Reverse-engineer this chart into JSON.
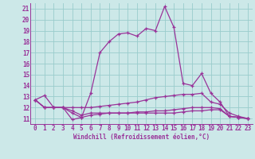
{
  "xlabel": "Windchill (Refroidissement éolien,°C)",
  "xlim": [
    -0.5,
    23.5
  ],
  "ylim": [
    10.5,
    21.5
  ],
  "yticks": [
    11,
    12,
    13,
    14,
    15,
    16,
    17,
    18,
    19,
    20,
    21
  ],
  "xticks": [
    0,
    1,
    2,
    3,
    4,
    5,
    6,
    7,
    8,
    9,
    10,
    11,
    12,
    13,
    14,
    15,
    16,
    17,
    18,
    19,
    20,
    21,
    22,
    23
  ],
  "bg_color": "#cce8e8",
  "line_color": "#993399",
  "grid_color": "#99cccc",
  "line1_x": [
    0,
    1,
    2,
    3,
    4,
    5,
    6,
    7,
    8,
    9,
    10,
    11,
    12,
    13,
    14,
    15,
    16,
    17,
    18,
    19,
    20,
    21,
    22,
    23
  ],
  "line1_y": [
    12.7,
    13.1,
    12.0,
    12.0,
    11.5,
    11.1,
    13.3,
    17.0,
    18.0,
    18.7,
    18.8,
    18.5,
    19.2,
    19.0,
    21.2,
    19.3,
    14.2,
    14.0,
    15.1,
    13.3,
    12.5,
    11.2,
    11.1,
    11.0
  ],
  "line2_x": [
    0,
    1,
    2,
    3,
    4,
    5,
    6,
    7,
    8,
    9,
    10,
    11,
    12,
    13,
    14,
    15,
    16,
    17,
    18,
    19,
    20,
    21,
    22,
    23
  ],
  "line2_y": [
    12.7,
    12.0,
    12.0,
    12.0,
    12.0,
    12.0,
    12.0,
    12.1,
    12.2,
    12.3,
    12.4,
    12.5,
    12.7,
    12.9,
    13.0,
    13.1,
    13.2,
    13.2,
    13.3,
    12.5,
    12.3,
    11.5,
    11.2,
    11.0
  ],
  "line3_x": [
    0,
    1,
    2,
    3,
    4,
    5,
    6,
    7,
    8,
    9,
    10,
    11,
    12,
    13,
    14,
    15,
    16,
    17,
    18,
    19,
    20,
    21,
    22,
    23
  ],
  "line3_y": [
    12.7,
    12.0,
    12.0,
    12.0,
    10.9,
    11.1,
    11.3,
    11.4,
    11.5,
    11.5,
    11.5,
    11.6,
    11.6,
    11.7,
    11.7,
    11.8,
    11.9,
    12.0,
    12.0,
    12.0,
    11.9,
    11.2,
    11.1,
    11.0
  ],
  "line4_x": [
    0,
    1,
    2,
    3,
    4,
    5,
    6,
    7,
    8,
    9,
    10,
    11,
    12,
    13,
    14,
    15,
    16,
    17,
    18,
    19,
    20,
    21,
    22,
    23
  ],
  "line4_y": [
    12.7,
    12.0,
    12.0,
    12.0,
    11.7,
    11.3,
    11.5,
    11.5,
    11.5,
    11.5,
    11.5,
    11.5,
    11.5,
    11.5,
    11.5,
    11.5,
    11.6,
    11.7,
    11.7,
    11.8,
    11.8,
    11.2,
    11.1,
    11.0
  ]
}
